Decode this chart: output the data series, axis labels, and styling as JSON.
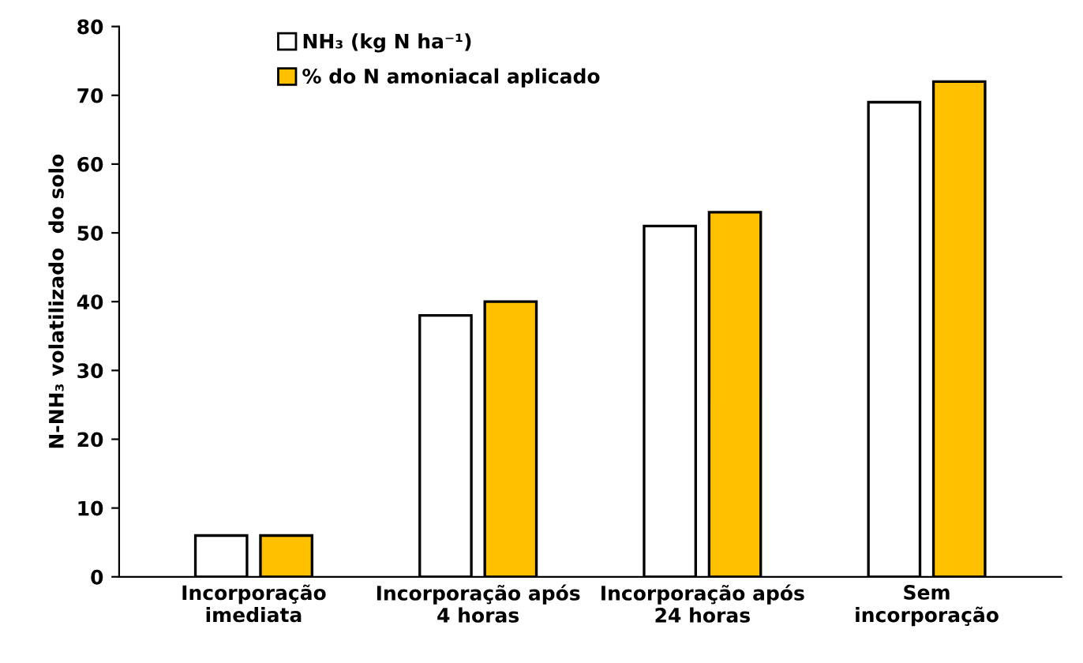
{
  "chart_data": {
    "type": "bar",
    "ylabel": "N-NH₃ volatilizado  do solo",
    "categories": [
      "Incorporação\nimediata",
      "Incorporação após\n4 horas",
      "Incorporação após\n24 horas",
      "Sem\nincorporação"
    ],
    "series": [
      {
        "name": "NH₃ (kg N ha⁻¹)",
        "color": "#ffffff",
        "values": [
          6,
          38,
          51,
          69
        ]
      },
      {
        "name": "% do N amoniacal aplicado",
        "color": "#ffc000",
        "values": [
          6,
          40,
          53,
          72
        ]
      }
    ],
    "ylim": [
      0,
      80
    ],
    "yticks": [
      0,
      10,
      20,
      30,
      40,
      50,
      60,
      70,
      80
    ],
    "grid": false,
    "legend": "top left"
  }
}
